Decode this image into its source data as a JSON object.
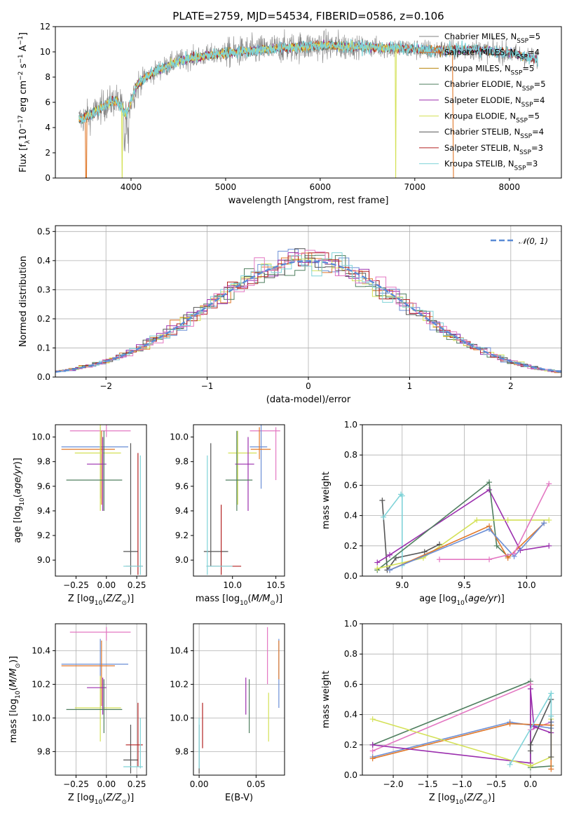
{
  "colors": {
    "chabrier_miles": "#6b8fd6",
    "salpeter_miles": "#e0782a",
    "kroupa_miles": "#b8860b",
    "chabrier_elodie": "#4f7f5f",
    "salpeter_elodie": "#9b2fae",
    "kroupa_elodie": "#d4e157",
    "chabrier_stelib": "#555555",
    "salpeter_stelib": "#b22222",
    "kroupa_stelib": "#7fd3d8",
    "data": "#808080",
    "pink": "#e377c2",
    "normal": "#5b8bd6"
  },
  "chart_data": [
    {
      "type": "line",
      "title": "PLATE=2759, MJD=54534, FIBERID=0586, z=0.106",
      "xlabel": "wavelength [Angstrom, rest frame]",
      "ylabel": "Flux [f_λ10^−17 erg cm^−2 s^−1 A^−1]",
      "xlim": [
        3200,
        8550
      ],
      "ylim": [
        0,
        12
      ],
      "xticks": [
        "4000",
        "5000",
        "6000",
        "7000",
        "8000"
      ],
      "yticks": [
        "0",
        "2",
        "4",
        "6",
        "8",
        "10",
        "12"
      ],
      "legend_position": "top-right",
      "legend": [
        {
          "base": "Chabrier MILES, N",
          "sub": "SSP",
          "tail": "=5"
        },
        {
          "base": "Salpeter MILES, N",
          "sub": "SSP",
          "tail": "=4"
        },
        {
          "base": "Kroupa MILES, N",
          "sub": "SSP",
          "tail": "=5"
        },
        {
          "base": "Chabrier ELODIE, N",
          "sub": "SSP",
          "tail": "=5"
        },
        {
          "base": "Salpeter ELODIE, N",
          "sub": "SSP",
          "tail": "=4"
        },
        {
          "base": "Kroupa ELODIE, N",
          "sub": "SSP",
          "tail": "=5"
        },
        {
          "base": "Chabrier STELIB, N",
          "sub": "SSP",
          "tail": "=4"
        },
        {
          "base": "Salpeter STELIB, N",
          "sub": "SSP",
          "tail": "=3"
        },
        {
          "base": "Kroupa STELIB, N",
          "sub": "SSP",
          "tail": "=3"
        }
      ],
      "spectrum_envelope": {
        "wavelength": [
          3450,
          3550,
          3650,
          3750,
          3850,
          3950,
          4050,
          4150,
          4300,
          4500,
          4700,
          5000,
          5300,
          5600,
          6000,
          6400,
          6800,
          7200,
          7600,
          8000,
          8300
        ],
        "flux": [
          4.6,
          4.9,
          5.4,
          5.9,
          6.2,
          5.0,
          7.2,
          8.0,
          8.6,
          9.3,
          9.6,
          9.9,
          10.1,
          10.3,
          10.5,
          10.4,
          10.3,
          10.1,
          10.2,
          9.9,
          9.4
        ]
      }
    },
    {
      "type": "line",
      "xlabel": "(data-model)/error",
      "ylabel": "Normed distribution",
      "xlim": [
        -2.5,
        2.5
      ],
      "ylim": [
        0,
        0.52
      ],
      "xticks": [
        "−2",
        "−1",
        "0",
        "1",
        "2"
      ],
      "yticks": [
        "0.0",
        "0.1",
        "0.2",
        "0.3",
        "0.4",
        "0.5"
      ],
      "legend_position": "top-right",
      "legend_label": "𝒩(0, 1)",
      "reference_curve": "standard normal pdf"
    },
    {
      "type": "scatter",
      "xlabel": "Z [log10(Z/Z⊙)]",
      "ylabel": "age  [log10(age/yr)]",
      "xlim": [
        -0.42,
        0.33
      ],
      "ylim": [
        8.87,
        10.1
      ],
      "xticks": [
        "−0.25",
        "0.00",
        "0.25"
      ],
      "yticks": [
        "9.0",
        "9.2",
        "9.4",
        "9.6",
        "9.8",
        "10.0"
      ],
      "points": [
        {
          "c": "pink",
          "x": 0.0,
          "y": 10.05,
          "xe": [
            -0.3,
            0.2
          ],
          "ye": [
            10.0,
            10.1
          ]
        },
        {
          "c": "chabrier_miles",
          "x": -0.05,
          "y": 9.92,
          "xe": [
            -0.37,
            0.18
          ],
          "ye": [
            9.5,
            10.08
          ]
        },
        {
          "c": "salpeter_miles",
          "x": -0.04,
          "y": 9.9,
          "xe": [
            -0.37,
            0.07
          ],
          "ye": [
            9.45,
            10.05
          ]
        },
        {
          "c": "kroupa_elodie",
          "x": -0.05,
          "y": 9.87,
          "xe": [
            -0.26,
            0.12
          ],
          "ye": [
            9.4,
            10.1
          ]
        },
        {
          "c": "salpeter_elodie",
          "x": -0.03,
          "y": 9.78,
          "xe": [
            -0.16,
            0.0
          ],
          "ye": [
            9.4,
            10.0
          ]
        },
        {
          "c": "chabrier_elodie",
          "x": -0.02,
          "y": 9.65,
          "xe": [
            -0.33,
            0.13
          ],
          "ye": [
            9.4,
            10.05
          ]
        },
        {
          "c": "chabrier_stelib",
          "x": 0.2,
          "y": 9.07,
          "xe": [
            0.14,
            0.26
          ],
          "ye": [
            8.88,
            9.95
          ]
        },
        {
          "c": "salpeter_stelib",
          "x": 0.26,
          "y": 8.95,
          "xe": [
            0.16,
            0.3
          ],
          "ye": [
            8.88,
            9.87
          ]
        },
        {
          "c": "kroupa_stelib",
          "x": 0.28,
          "y": 8.95,
          "xe": [
            0.14,
            0.3
          ],
          "ye": [
            8.88,
            9.85
          ]
        }
      ]
    },
    {
      "type": "scatter",
      "xlabel": "mass [log10(M/M⊙)]",
      "xlim": [
        9.55,
        10.6
      ],
      "ylim": [
        8.87,
        10.1
      ],
      "xticks": [
        "10.0",
        "10.5"
      ],
      "yticks": [
        "9.0",
        "9.2",
        "9.4",
        "9.6",
        "9.8",
        "10.0"
      ],
      "points": [
        {
          "c": "pink",
          "x": 10.5,
          "y": 10.05,
          "xe": [
            10.2,
            10.55
          ],
          "ye": [
            9.65,
            10.08
          ]
        },
        {
          "c": "chabrier_miles",
          "x": 10.33,
          "y": 9.92,
          "xe": [
            10.2,
            10.4
          ],
          "ye": [
            9.58,
            10.1
          ]
        },
        {
          "c": "salpeter_miles",
          "x": 10.31,
          "y": 9.9,
          "xe": [
            10.21,
            10.44
          ],
          "ye": [
            9.82,
            10.08
          ]
        },
        {
          "c": "kroupa_elodie",
          "x": 10.06,
          "y": 9.87,
          "xe": [
            9.95,
            10.28
          ],
          "ye": [
            9.45,
            10.05
          ]
        },
        {
          "c": "salpeter_elodie",
          "x": 10.18,
          "y": 9.78,
          "xe": [
            10.03,
            10.25
          ],
          "ye": [
            9.4,
            10.0
          ]
        },
        {
          "c": "chabrier_elodie",
          "x": 10.05,
          "y": 9.65,
          "xe": [
            9.92,
            10.23
          ],
          "ye": [
            9.4,
            10.05
          ]
        },
        {
          "c": "chabrier_stelib",
          "x": 9.75,
          "y": 9.07,
          "xe": [
            9.67,
            9.95
          ],
          "ye": [
            8.95,
            9.95
          ]
        },
        {
          "c": "salpeter_stelib",
          "x": 9.87,
          "y": 8.95,
          "xe": [
            9.7,
            10.1
          ],
          "ye": [
            8.88,
            9.45
          ]
        },
        {
          "c": "kroupa_stelib",
          "x": 9.71,
          "y": 8.95,
          "xe": [
            9.7,
            10.0
          ],
          "ye": [
            8.88,
            9.85
          ]
        }
      ]
    },
    {
      "type": "line",
      "xlabel": "age  [log10(age/yr)]",
      "ylabel": "mass weight",
      "xlim": [
        8.68,
        10.28
      ],
      "ylim": [
        0,
        1
      ],
      "xticks": [
        "9.0",
        "9.5",
        "10.0"
      ],
      "yticks": [
        "0.0",
        "0.2",
        "0.4",
        "0.6",
        "0.8",
        "1.0"
      ],
      "series": [
        {
          "c": "chabrier_stelib",
          "x": [
            8.84,
            8.88,
            8.95,
            9.18,
            9.3
          ],
          "y": [
            0.5,
            0.04,
            0.12,
            0.16,
            0.21
          ]
        },
        {
          "c": "kroupa_stelib",
          "x": [
            8.85,
            8.99,
            9.0,
            9.0
          ],
          "y": [
            0.39,
            0.54,
            0.53,
            0.07
          ]
        },
        {
          "c": "salpeter_elodie",
          "x": [
            8.8,
            8.9,
            9.7,
            9.95,
            10.18
          ],
          "y": [
            0.09,
            0.14,
            0.57,
            0.17,
            0.2
          ]
        },
        {
          "c": "chabrier_elodie",
          "x": [
            8.8,
            9.7,
            9.76,
            9.85
          ],
          "y": [
            0.04,
            0.62,
            0.2,
            0.13
          ]
        },
        {
          "c": "kroupa_elodie",
          "x": [
            8.8,
            9.17,
            9.6,
            9.85,
            10.18
          ],
          "y": [
            0.05,
            0.12,
            0.37,
            0.37,
            0.37
          ]
        },
        {
          "c": "salpeter_miles",
          "x": [
            8.9,
            9.7,
            9.85,
            10.14
          ],
          "y": [
            0.04,
            0.33,
            0.12,
            0.35
          ]
        },
        {
          "c": "chabrier_miles",
          "x": [
            8.9,
            9.7,
            9.9,
            10.14
          ],
          "y": [
            0.04,
            0.31,
            0.13,
            0.35
          ]
        },
        {
          "c": "pink",
          "x": [
            9.3,
            9.7,
            9.9,
            10.18
          ],
          "y": [
            0.11,
            0.11,
            0.15,
            0.61
          ]
        }
      ]
    },
    {
      "type": "scatter",
      "xlabel": "Z [log10(Z/Z⊙)]",
      "ylabel": "mass [log10(M/M⊙)]",
      "xlim": [
        -0.42,
        0.33
      ],
      "ylim": [
        9.66,
        10.56
      ],
      "xticks": [
        "−0.25",
        "0.00",
        "0.25"
      ],
      "yticks": [
        "9.8",
        "10.0",
        "10.2",
        "10.4"
      ],
      "points": [
        {
          "c": "pink",
          "x": 0.0,
          "y": 10.51,
          "xe": [
            -0.3,
            0.2
          ],
          "ye": [
            10.46,
            10.54
          ]
        },
        {
          "c": "chabrier_miles",
          "x": -0.05,
          "y": 10.32,
          "xe": [
            -0.37,
            0.18
          ],
          "ye": [
            10.06,
            10.47
          ]
        },
        {
          "c": "salpeter_miles",
          "x": -0.04,
          "y": 10.31,
          "xe": [
            -0.37,
            0.07
          ],
          "ye": [
            10.07,
            10.46
          ]
        },
        {
          "c": "kroupa_elodie",
          "x": -0.05,
          "y": 10.06,
          "xe": [
            -0.26,
            0.12
          ],
          "ye": [
            9.86,
            10.25
          ]
        },
        {
          "c": "salpeter_elodie",
          "x": -0.03,
          "y": 10.18,
          "xe": [
            -0.16,
            0.0
          ],
          "ye": [
            10.02,
            10.24
          ]
        },
        {
          "c": "chabrier_elodie",
          "x": -0.02,
          "y": 10.05,
          "xe": [
            -0.33,
            0.13
          ],
          "ye": [
            9.91,
            10.23
          ]
        },
        {
          "c": "chabrier_stelib",
          "x": 0.2,
          "y": 9.75,
          "xe": [
            0.14,
            0.26
          ],
          "ye": [
            9.67,
            9.96
          ]
        },
        {
          "c": "salpeter_stelib",
          "x": 0.26,
          "y": 9.84,
          "xe": [
            0.16,
            0.3
          ],
          "ye": [
            9.71,
            10.09
          ]
        },
        {
          "c": "kroupa_stelib",
          "x": 0.28,
          "y": 9.71,
          "xe": [
            0.14,
            0.3
          ],
          "ye": [
            9.7,
            10.0
          ]
        }
      ]
    },
    {
      "type": "scatter",
      "xlabel": "E(B-V)",
      "xlim": [
        -0.005,
        0.075
      ],
      "ylim": [
        9.66,
        10.56
      ],
      "xticks": [
        "0.00",
        "0.05"
      ],
      "yticks": [
        "9.8",
        "10.0",
        "10.2",
        "10.4"
      ],
      "points": [
        {
          "c": "pink",
          "x": 0.06,
          "y": 10.51,
          "xe": [
            0.06,
            0.06
          ],
          "ye": [
            10.2,
            10.54
          ]
        },
        {
          "c": "chabrier_miles",
          "x": 0.07,
          "y": 10.32,
          "xe": [
            0.07,
            0.07
          ],
          "ye": [
            10.06,
            10.47
          ]
        },
        {
          "c": "salpeter_miles",
          "x": 0.07,
          "y": 10.31,
          "xe": [
            0.07,
            0.07
          ],
          "ye": [
            10.23,
            10.46
          ]
        },
        {
          "c": "kroupa_elodie",
          "x": 0.061,
          "y": 10.06,
          "xe": [
            0.061,
            0.061
          ],
          "ye": [
            9.86,
            10.15
          ]
        },
        {
          "c": "salpeter_elodie",
          "x": 0.041,
          "y": 10.18,
          "xe": [
            0.041,
            0.041
          ],
          "ye": [
            10.02,
            10.24
          ]
        },
        {
          "c": "chabrier_elodie",
          "x": 0.044,
          "y": 10.05,
          "xe": [
            0.044,
            0.044
          ],
          "ye": [
            9.91,
            10.23
          ]
        },
        {
          "c": "chabrier_stelib",
          "x": 0.0,
          "y": 9.75,
          "xe": [
            0.0,
            0.0
          ],
          "ye": [
            9.67,
            9.96
          ]
        },
        {
          "c": "salpeter_stelib",
          "x": 0.003,
          "y": 9.95,
          "xe": [
            0.003,
            0.003
          ],
          "ye": [
            9.82,
            10.09
          ]
        },
        {
          "c": "kroupa_stelib",
          "x": 0.0,
          "y": 9.8,
          "xe": [
            0.0,
            0.0
          ],
          "ye": [
            9.7,
            10.0
          ]
        }
      ]
    },
    {
      "type": "line",
      "xlabel": "Z [log10(Z/Z⊙)]",
      "ylabel": "mass weight",
      "xlim": [
        -2.45,
        0.45
      ],
      "ylim": [
        0,
        1
      ],
      "xticks": [
        "−2.0",
        "−1.5",
        "−1.0",
        "−0.5",
        "0.0"
      ],
      "yticks": [
        "0.0",
        "0.2",
        "0.4",
        "0.6",
        "0.8",
        "1.0"
      ],
      "series": [
        {
          "c": "chabrier_elodie",
          "x": [
            -2.3,
            0.0,
            0.0,
            0.3
          ],
          "y": [
            0.2,
            0.62,
            0.05,
            0.06
          ]
        },
        {
          "c": "pink",
          "x": [
            -2.3,
            0.0,
            0.0,
            0.3
          ],
          "y": [
            0.16,
            0.6,
            0.3,
            0.35
          ]
        },
        {
          "c": "chabrier_miles",
          "x": [
            -2.3,
            -0.3,
            0.3,
            0.3
          ],
          "y": [
            0.12,
            0.35,
            0.31,
            0.35
          ]
        },
        {
          "c": "salpeter_miles",
          "x": [
            -2.3,
            -0.3,
            0.3,
            0.3
          ],
          "y": [
            0.11,
            0.34,
            0.33,
            0.04
          ]
        },
        {
          "c": "salpeter_elodie",
          "x": [
            -2.3,
            0.0,
            0.0,
            0.05,
            0.3
          ],
          "y": [
            0.2,
            0.08,
            0.57,
            0.32,
            0.28
          ]
        },
        {
          "c": "kroupa_elodie",
          "x": [
            -2.3,
            0.0,
            0.3,
            0.3
          ],
          "y": [
            0.37,
            0.06,
            0.12,
            0.37
          ]
        },
        {
          "c": "chabrier_stelib",
          "x": [
            0.0,
            0.0,
            0.3,
            0.3
          ],
          "y": [
            0.16,
            0.2,
            0.5,
            0.12
          ]
        },
        {
          "c": "kroupa_stelib",
          "x": [
            -0.3,
            0.3,
            0.3
          ],
          "y": [
            0.07,
            0.54,
            0.39
          ]
        }
      ]
    }
  ]
}
